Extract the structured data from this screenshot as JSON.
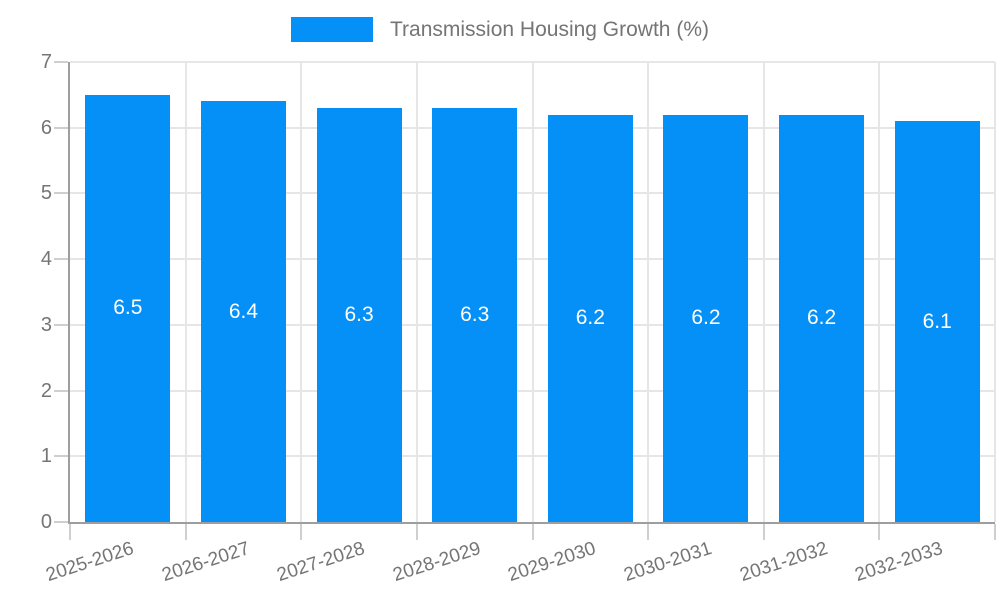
{
  "legend": {
    "label": "Transmission Housing Growth (%)"
  },
  "colors": {
    "bar": "#0590f8",
    "grid": "#e6e6e6",
    "axis": "#9e9e9e",
    "tick": "#cfcfcf",
    "text": "#757575",
    "value_label": "#ffffff",
    "background": "#ffffff"
  },
  "chart_data": {
    "type": "bar",
    "title": "Transmission Housing Growth (%)",
    "categories": [
      "2025-2026",
      "2026-2027",
      "2027-2028",
      "2028-2029",
      "2029-2030",
      "2030-2031",
      "2031-2032",
      "2032-2033"
    ],
    "values": [
      6.5,
      6.4,
      6.3,
      6.3,
      6.2,
      6.2,
      6.2,
      6.1
    ],
    "xlabel": "",
    "ylabel": "",
    "ylim": [
      0,
      7
    ],
    "yticks": [
      0,
      1,
      2,
      3,
      4,
      5,
      6,
      7
    ],
    "grid": true,
    "legend_position": "top-center",
    "bar_value_labels": true,
    "x_label_rotation_deg": -18
  }
}
